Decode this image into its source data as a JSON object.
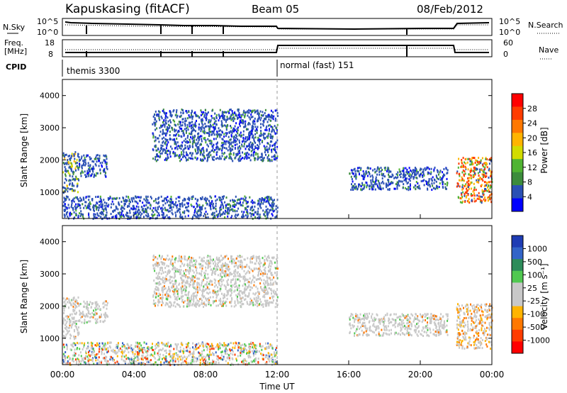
{
  "header": {
    "station": "Kapuskasing (fitACF)",
    "beam": "Beam 05",
    "date": "08/Feb/2012"
  },
  "noise_panel": {
    "left_label": "N.Sky",
    "left_ticks": [
      "10^5",
      "10^0"
    ],
    "right_ticks": [
      "10^5",
      "10^0"
    ],
    "right_label": "N.Search"
  },
  "freq_panel": {
    "left_label_1": "Freq.",
    "left_label_2": "[MHz]",
    "left_ticks": [
      "18",
      "8"
    ],
    "right_ticks": [
      "60",
      "0"
    ],
    "right_label": "Nave"
  },
  "cpid_panel": {
    "label": "CPID",
    "mode_1": "themis 3300",
    "mode_2": "normal (fast) 151"
  },
  "x_axis": {
    "ticks": [
      "00:00",
      "04:00",
      "08:00",
      "12:00",
      "16:00",
      "20:00",
      "00:00"
    ],
    "label": "Time UT"
  },
  "y_axis": {
    "label": "Slant Range [km]",
    "ticks": [
      "4000",
      "3000",
      "2000",
      "1000"
    ]
  },
  "power_colorbar": {
    "label": "Power [dB]",
    "ticks": [
      "28",
      "24",
      "20",
      "16",
      "12",
      "8",
      "4"
    ],
    "colors": [
      "#ff0000",
      "#ff3c00",
      "#ff7800",
      "#ffb400",
      "#d2dc00",
      "#50b432",
      "#3c8c3c",
      "#2a50b4",
      "#0000ff"
    ]
  },
  "velocity_colorbar": {
    "label": "Velocity [m s⁻¹]",
    "ticks": [
      "1000",
      "500",
      "100",
      "25",
      "-25",
      "-100",
      "-500",
      "-1000"
    ],
    "colors": [
      "#1e3cb4",
      "#3264c8",
      "#2d8c5a",
      "#50c850",
      "#c8c8c8",
      "#c8c8c8",
      "#ffb400",
      "#ff7800",
      "#ff3c00",
      "#ff0000"
    ]
  },
  "chart_data": {
    "type": "heatmap",
    "x_hours": [
      0,
      24
    ],
    "y_range_km": [
      180,
      4500
    ],
    "mode_change_hour": 12,
    "power_regions": [
      {
        "t0": 0.0,
        "t1": 0.9,
        "r0": 1000,
        "r1": 2300,
        "level": "mixed"
      },
      {
        "t0": 0.9,
        "t1": 2.5,
        "r0": 1500,
        "r1": 2200,
        "level": "low"
      },
      {
        "t0": 5.0,
        "t1": 12.0,
        "r0": 2000,
        "r1": 3600,
        "level": "low"
      },
      {
        "t0": 0.0,
        "t1": 12.0,
        "r0": 200,
        "r1": 900,
        "level": "low"
      },
      {
        "t0": 16.0,
        "t1": 21.5,
        "r0": 1100,
        "r1": 1800,
        "level": "low"
      },
      {
        "t0": 22.0,
        "t1": 24.0,
        "r0": 700,
        "r1": 2100,
        "level": "high"
      }
    ]
  }
}
